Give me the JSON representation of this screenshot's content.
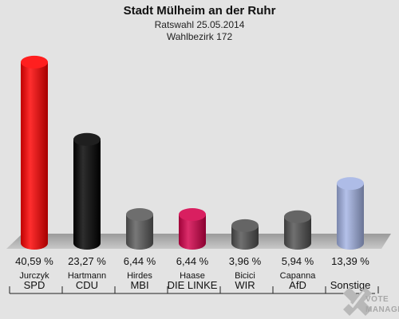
{
  "header": {
    "title": "Stadt Mülheim an der Ruhr",
    "line1": "Ratswahl 25.05.2014",
    "line2": "Wahlbezirk 172"
  },
  "logo": {
    "line1": "VOTE",
    "line2": "MANAGER"
  },
  "chart_data": {
    "type": "bar",
    "title": "Stadt Mülheim an der Ruhr",
    "subtitle": [
      "Ratswahl 25.05.2014",
      "Wahlbezirk 172"
    ],
    "categories": [
      "SPD",
      "CDU",
      "MBI",
      "DIE LINKE",
      "WIR",
      "AfD",
      "Sonstige"
    ],
    "candidates": [
      "Jurczyk",
      "Hartmann",
      "Hirdes",
      "Haase",
      "Bicici",
      "Capanna",
      ""
    ],
    "values": [
      40.59,
      23.27,
      6.44,
      6.44,
      3.96,
      5.94,
      13.39
    ],
    "value_labels": [
      "40,59 %",
      "23,27 %",
      "6,44 %",
      "6,44 %",
      "3,96 %",
      "5,94 %",
      "13,39 %"
    ],
    "colors": [
      "#ff0000",
      "#000000",
      "#5a5a5a",
      "#d4004a",
      "#505050",
      "#505050",
      "#a3b3e4"
    ],
    "ylim": [
      0,
      42
    ],
    "grid": false,
    "legend": "none"
  }
}
